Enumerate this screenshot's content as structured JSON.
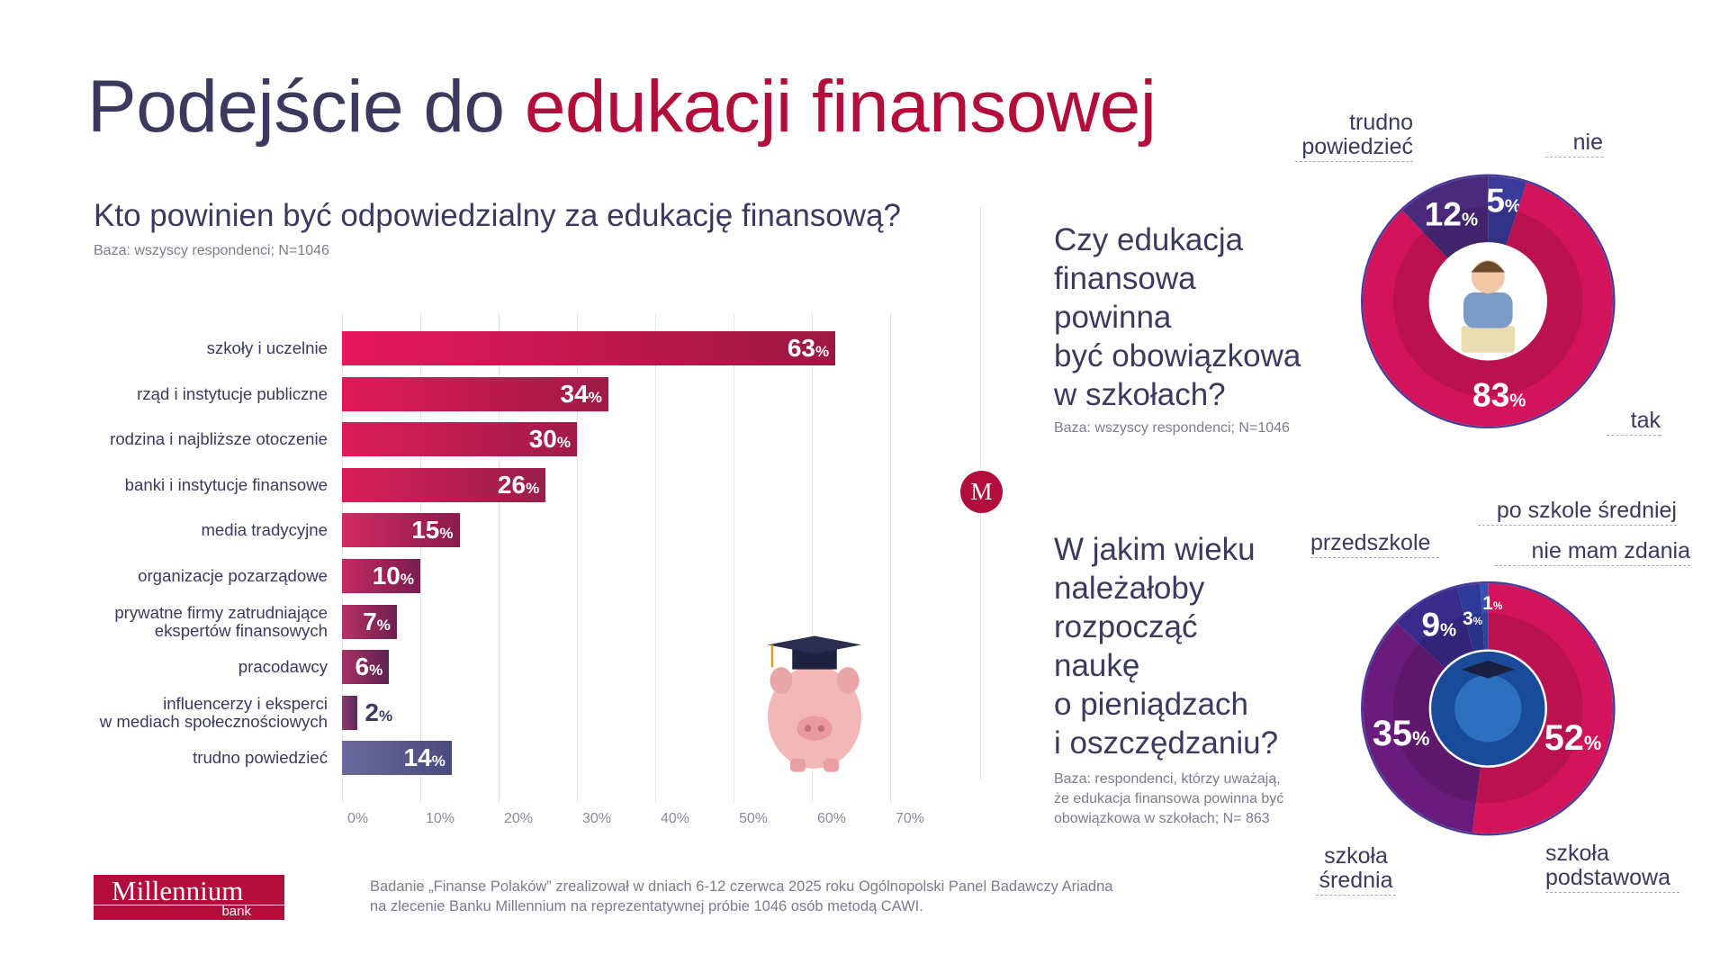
{
  "header": {
    "title_part1": "Podejście do ",
    "title_part2": "edukacji finansowej"
  },
  "colors": {
    "dark": "#3b3a5e",
    "brand_red": "#b30d3c"
  },
  "bar_section": {
    "question": "Kto powinien być odpowiedzialny za edukację finansową?",
    "base": "Baza: wszyscy respondenci; N=1046"
  },
  "donut1_section": {
    "question_lines": [
      "Czy edukacja",
      "finansowa",
      "powinna",
      "być obowiązkowa",
      "w szkołach?"
    ],
    "base": "Baza: wszyscy respondenci; N=1046"
  },
  "donut2_section": {
    "question_lines": [
      "W jakim wieku",
      "należałoby",
      "rozpocząć",
      "naukę",
      "o pieniądzach",
      "i oszczędzaniu?"
    ],
    "base_lines": [
      "Baza: respondenci, którzy uważają,",
      "że edukacja finansowa powinna być",
      "obowiązkowa w szkołach; N= 863"
    ]
  },
  "chart_data": [
    {
      "type": "bar",
      "orientation": "horizontal",
      "categories": [
        "szkoły i uczelnie",
        "rząd i instytucje publiczne",
        "rodzina i najbliższe otoczenie",
        "banki i instytucje finansowe",
        "media tradycyjne",
        "organizacje pozarządowe",
        "prywatne firmy zatrudniające ekspertów finansowych",
        "pracodawcy",
        "influencerzy i eksperci w mediach społecznościowych",
        "trudno powiedzieć"
      ],
      "values": [
        63,
        34,
        30,
        26,
        15,
        10,
        7,
        6,
        2,
        14
      ],
      "xlim": [
        0,
        70
      ],
      "xticks": [
        "0%",
        "10%",
        "20%",
        "30%",
        "40%",
        "50%",
        "60%",
        "70%"
      ],
      "grid": true,
      "unit": "%"
    },
    {
      "type": "pie",
      "variant": "donut",
      "slices": [
        {
          "label": "nie",
          "value": 5,
          "color": "#3a3a9a"
        },
        {
          "label": "tak",
          "value": 83,
          "color": "#d4145a"
        },
        {
          "label": "trudno powiedzieć",
          "value": 12,
          "color": "#4a2a7a"
        }
      ]
    },
    {
      "type": "pie",
      "variant": "donut",
      "slices": [
        {
          "label": "szkoła podstawowa",
          "value": 52,
          "color": "#d4145a"
        },
        {
          "label": "szkoła średnia",
          "value": 35,
          "color": "#6a1c7c"
        },
        {
          "label": "przedszkole",
          "value": 9,
          "color": "#3a2a8a"
        },
        {
          "label": "po szkole średniej",
          "value": 3,
          "color": "#2f3a9a"
        },
        {
          "label": "nie mam zdania",
          "value": 1,
          "color": "#3550b0"
        }
      ]
    }
  ],
  "footer": {
    "logo_text": "Millennium",
    "logo_sub": "bank",
    "note_lines": [
      "Badanie „Finanse Polaków” zrealizował w dniach 6-12 czerwca 2025 roku Ogólnopolski Panel Badawczy Ariadna",
      "na zlecenie Banku Millennium na reprezentatywnej próbie 1046 osób metodą CAWI."
    ]
  },
  "divider_logo": "M"
}
